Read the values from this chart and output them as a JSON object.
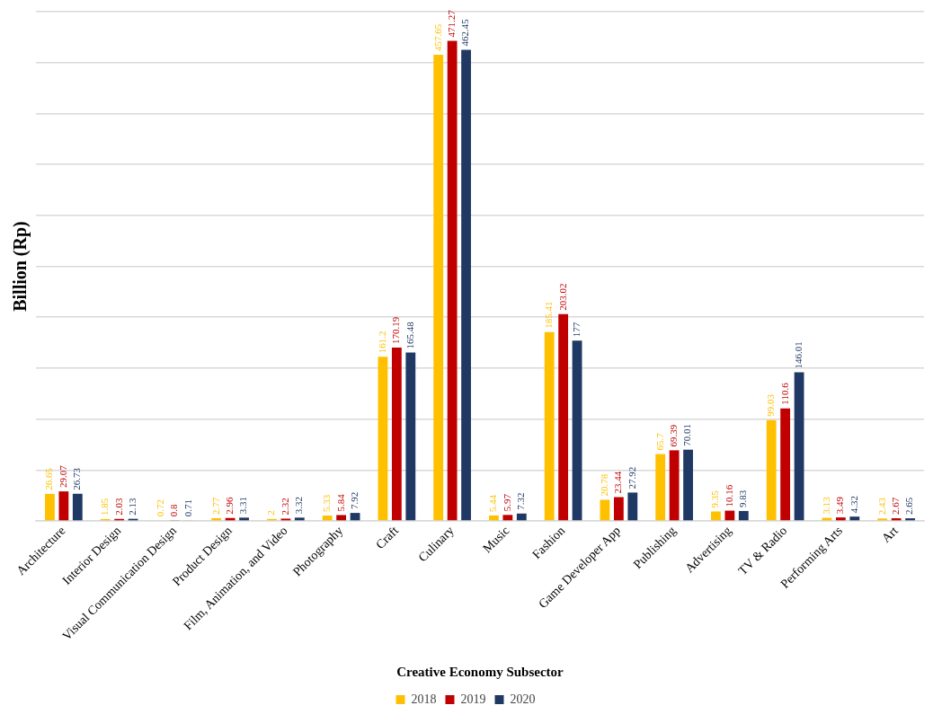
{
  "chart_data": {
    "type": "bar",
    "xlabel": "Creative Economy Subsector",
    "ylabel": "Billion (Rp)",
    "categories": [
      "Architecture",
      "Interior Design",
      "Visual Communication Design",
      "Product Design",
      "Film, Animation, and Video",
      "Photography",
      "Craft",
      "Culinary",
      "Music",
      "Fashion",
      "Game Developer App",
      "Publishing",
      "Advertising",
      "TV & Radio",
      "Performing Arts",
      "Art"
    ],
    "series": [
      {
        "name": "2018",
        "color": "#ffc000",
        "values": [
          26.65,
          1.85,
          0.72,
          2.77,
          2,
          5.33,
          161.2,
          457.65,
          5.44,
          185.41,
          20.78,
          65.7,
          9.35,
          99.03,
          3.13,
          2.43
        ]
      },
      {
        "name": "2019",
        "color": "#c00000",
        "values": [
          29.07,
          2.03,
          0.8,
          2.96,
          2.32,
          5.84,
          170.19,
          471.27,
          5.97,
          203.02,
          23.44,
          69.39,
          10.16,
          110.6,
          3.49,
          2.67
        ]
      },
      {
        "name": "2020",
        "color": "#1f3864",
        "values": [
          26.73,
          2.13,
          0.71,
          3.31,
          3.32,
          7.92,
          165.48,
          462.45,
          7.32,
          177,
          27.92,
          70.01,
          9.83,
          146.01,
          4.32,
          2.65
        ]
      }
    ],
    "ylim": [
      0,
      500
    ],
    "yticks": [
      {
        "value": 0,
        "label": null
      },
      {
        "value": 50,
        "label": null
      },
      {
        "value": 100,
        "label": null
      },
      {
        "value": 150,
        "label": null
      },
      {
        "value": 200,
        "label": null
      },
      {
        "value": 250,
        "label": null
      },
      {
        "value": 300,
        "label": null
      },
      {
        "value": 350,
        "label": null
      },
      {
        "value": 400,
        "label": null
      },
      {
        "value": 450,
        "label": null
      },
      {
        "value": 500,
        "label": null
      }
    ],
    "tick_labels": "x",
    "grid": "y",
    "legend": "bottom",
    "data_labels": true
  }
}
